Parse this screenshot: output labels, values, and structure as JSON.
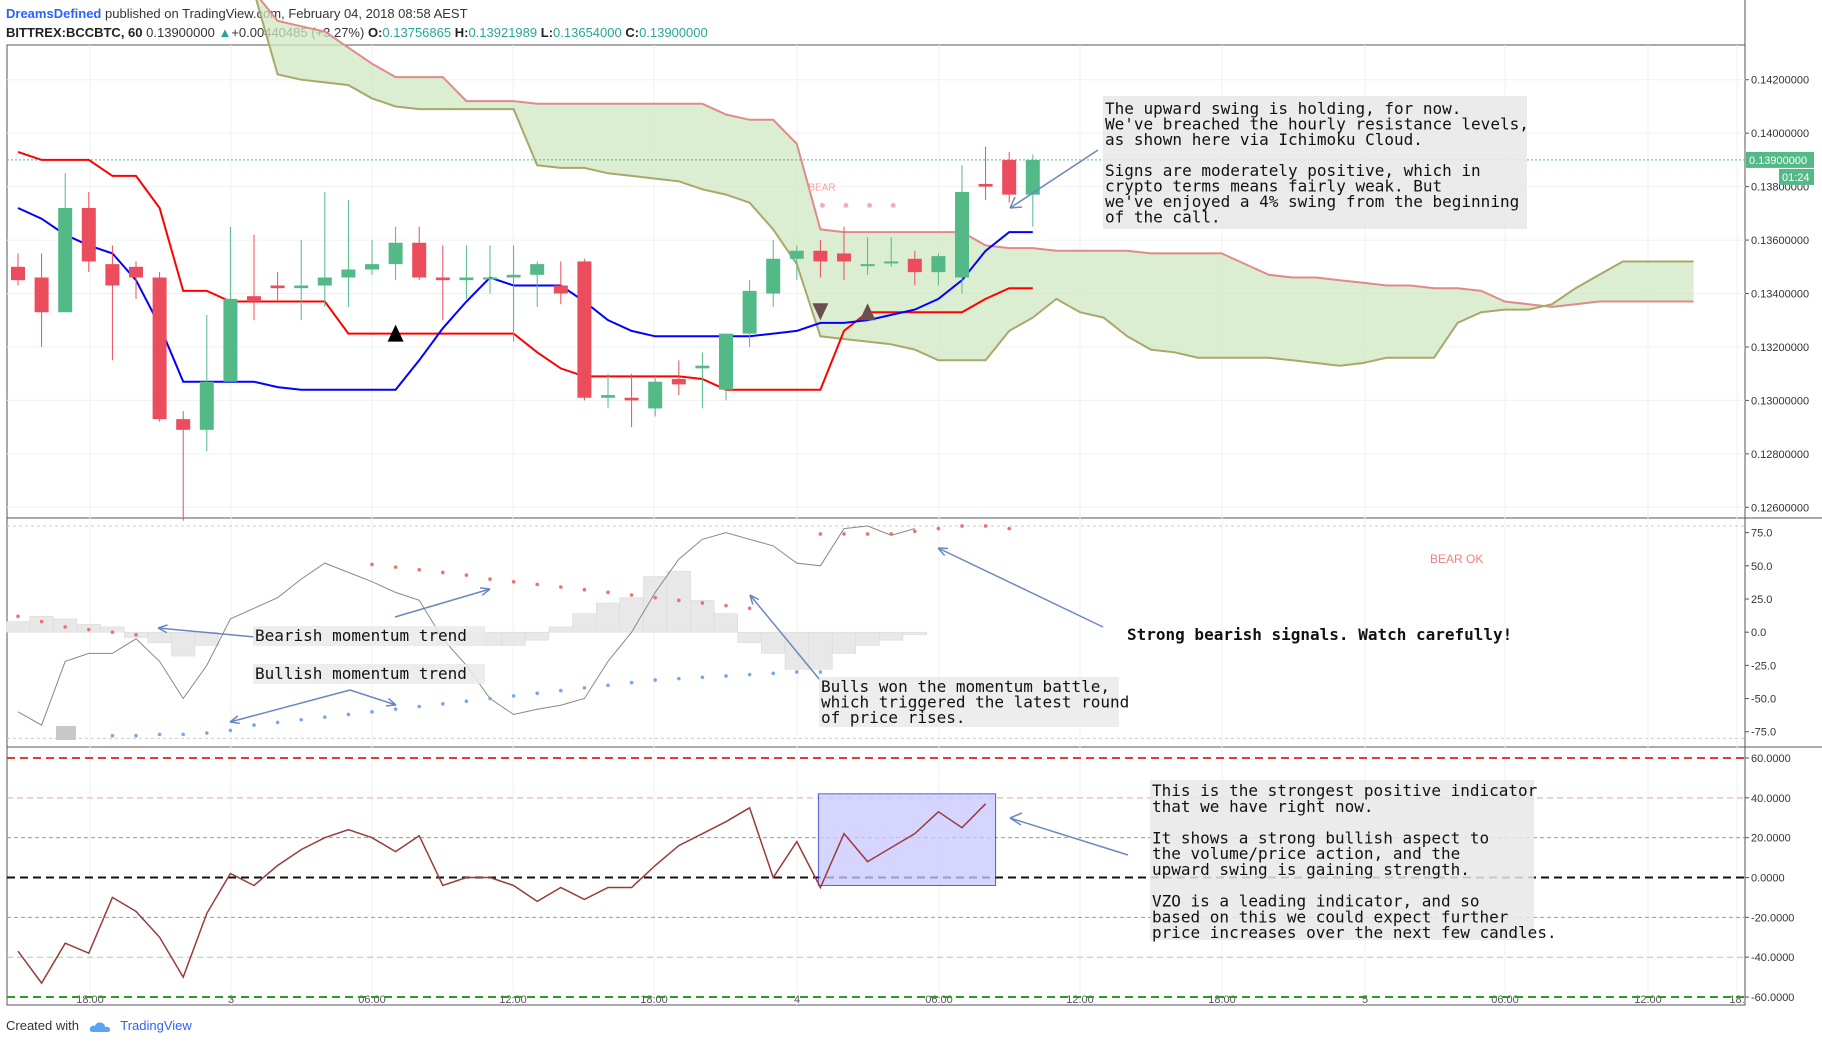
{
  "header": {
    "author": "DreamsDefined",
    "published": "published on TradingView.com, February 04, 2018 08:58 AEST",
    "symbol": "BITTREX:BCCBTC, 60",
    "price": "0.13900000",
    "change": "+0.00440485 (+3.27%)",
    "o_label": "O:",
    "o_value": "0.13756865",
    "h_label": "H:",
    "h_value": "0.13921989",
    "l_label": "L:",
    "l_value": "0.13654000",
    "c_label": "C:",
    "c_value": "0.13900000"
  },
  "footer": {
    "created_with": "Created with",
    "brand": "TradingView"
  },
  "colors": {
    "up": "#53b987",
    "down": "#eb4d5c",
    "tenkan": "#0000ff",
    "kijun": "#ff0000",
    "cloud_bear": "#f4b5b5",
    "cloud_bull": "#cfe8c2",
    "vzo": "#9b3a3a",
    "highlight": "#c8c8ff"
  },
  "chart_data": [
    {
      "type": "candlestick",
      "title": "",
      "price_badge": "0.13900000",
      "countdown": "01:24",
      "y_ticks": [
        "0.14200000",
        "0.14000000",
        "0.13800000",
        "0.13600000",
        "0.13400000",
        "0.13200000",
        "0.13000000",
        "0.12800000",
        "0.12600000"
      ],
      "y_range": [
        0.1256,
        0.1433
      ],
      "x_labels": [
        "18:00",
        "3",
        "06:00",
        "12:00",
        "18:00",
        "4",
        "06:00",
        "12:00",
        "18:00",
        "5",
        "06:00",
        "12:00",
        "18:"
      ],
      "candles": [
        {
          "o": 0.135,
          "h": 0.1355,
          "l": 0.1343,
          "c": 0.1345
        },
        {
          "o": 0.1346,
          "h": 0.1355,
          "l": 0.132,
          "c": 0.1333
        },
        {
          "o": 0.1333,
          "h": 0.1385,
          "l": 0.1333,
          "c": 0.1372
        },
        {
          "o": 0.1372,
          "h": 0.1378,
          "l": 0.1348,
          "c": 0.1352
        },
        {
          "o": 0.1351,
          "h": 0.1358,
          "l": 0.1315,
          "c": 0.1343
        },
        {
          "o": 0.135,
          "h": 0.1352,
          "l": 0.1338,
          "c": 0.1346
        },
        {
          "o": 0.1346,
          "h": 0.1348,
          "l": 0.1292,
          "c": 0.1293
        },
        {
          "o": 0.1293,
          "h": 0.1296,
          "l": 0.1255,
          "c": 0.1289
        },
        {
          "o": 0.1289,
          "h": 0.1332,
          "l": 0.1281,
          "c": 0.1307
        },
        {
          "o": 0.1307,
          "h": 0.1365,
          "l": 0.1307,
          "c": 0.1338
        },
        {
          "o": 0.1339,
          "h": 0.1362,
          "l": 0.133,
          "c": 0.1337
        },
        {
          "o": 0.1343,
          "h": 0.1348,
          "l": 0.1337,
          "c": 0.1342
        },
        {
          "o": 0.1342,
          "h": 0.136,
          "l": 0.133,
          "c": 0.1343
        },
        {
          "o": 0.1343,
          "h": 0.1378,
          "l": 0.1335,
          "c": 0.1346
        },
        {
          "o": 0.1346,
          "h": 0.1375,
          "l": 0.1335,
          "c": 0.1349
        },
        {
          "o": 0.1349,
          "h": 0.136,
          "l": 0.1347,
          "c": 0.1351
        },
        {
          "o": 0.1351,
          "h": 0.1365,
          "l": 0.1345,
          "c": 0.1359
        },
        {
          "o": 0.1359,
          "h": 0.1365,
          "l": 0.1345,
          "c": 0.1346
        },
        {
          "o": 0.1346,
          "h": 0.1358,
          "l": 0.133,
          "c": 0.1345
        },
        {
          "o": 0.1345,
          "h": 0.1358,
          "l": 0.1338,
          "c": 0.1346
        },
        {
          "o": 0.1346,
          "h": 0.1358,
          "l": 0.134,
          "c": 0.1346
        },
        {
          "o": 0.1346,
          "h": 0.1358,
          "l": 0.1322,
          "c": 0.1347
        },
        {
          "o": 0.1347,
          "h": 0.1352,
          "l": 0.1335,
          "c": 0.1351
        },
        {
          "o": 0.1343,
          "h": 0.1352,
          "l": 0.1336,
          "c": 0.134
        },
        {
          "o": 0.1352,
          "h": 0.1353,
          "l": 0.13,
          "c": 0.1301
        },
        {
          "o": 0.1301,
          "h": 0.131,
          "l": 0.1297,
          "c": 0.1302
        },
        {
          "o": 0.1301,
          "h": 0.131,
          "l": 0.129,
          "c": 0.13
        },
        {
          "o": 0.1297,
          "h": 0.1309,
          "l": 0.1294,
          "c": 0.1307
        },
        {
          "o": 0.1308,
          "h": 0.1315,
          "l": 0.1302,
          "c": 0.1306
        },
        {
          "o": 0.1312,
          "h": 0.1318,
          "l": 0.1297,
          "c": 0.1313
        },
        {
          "o": 0.1304,
          "h": 0.1324,
          "l": 0.13,
          "c": 0.1325
        },
        {
          "o": 0.1325,
          "h": 0.1345,
          "l": 0.132,
          "c": 0.1341
        },
        {
          "o": 0.134,
          "h": 0.136,
          "l": 0.1335,
          "c": 0.1353
        },
        {
          "o": 0.1353,
          "h": 0.1358,
          "l": 0.1345,
          "c": 0.1356
        },
        {
          "o": 0.1356,
          "h": 0.136,
          "l": 0.1346,
          "c": 0.1352
        },
        {
          "o": 0.1355,
          "h": 0.1365,
          "l": 0.1345,
          "c": 0.1352
        },
        {
          "o": 0.1351,
          "h": 0.1361,
          "l": 0.1347,
          "c": 0.1351
        },
        {
          "o": 0.1352,
          "h": 0.1361,
          "l": 0.135,
          "c": 0.1352
        },
        {
          "o": 0.1353,
          "h": 0.1356,
          "l": 0.1343,
          "c": 0.1348
        },
        {
          "o": 0.1348,
          "h": 0.1355,
          "l": 0.1343,
          "c": 0.1354
        },
        {
          "o": 0.1346,
          "h": 0.1388,
          "l": 0.134,
          "c": 0.1378
        },
        {
          "o": 0.1381,
          "h": 0.1395,
          "l": 0.1375,
          "c": 0.138
        },
        {
          "o": 0.139,
          "h": 0.1393,
          "l": 0.1374,
          "c": 0.1377
        },
        {
          "o": 0.1377,
          "h": 0.1392,
          "l": 0.1365,
          "c": 0.139
        }
      ],
      "tenkan": [
        0.1372,
        0.1368,
        0.1362,
        0.1358,
        0.1355,
        0.1345,
        0.1328,
        0.1307,
        0.1307,
        0.1307,
        0.1307,
        0.1305,
        0.1304,
        0.1304,
        0.1304,
        0.1304,
        0.1304,
        0.1315,
        0.1327,
        0.1337,
        0.1346,
        0.1343,
        0.1343,
        0.1343,
        0.1337,
        0.133,
        0.1326,
        0.1324,
        0.1324,
        0.1324,
        0.1324,
        0.1324,
        0.1325,
        0.1326,
        0.1329,
        0.1329,
        0.133,
        0.1332,
        0.1334,
        0.1338,
        0.1345,
        0.1356,
        0.1363,
        0.1363
      ],
      "kijun": [
        0.1393,
        0.139,
        0.139,
        0.139,
        0.1384,
        0.1384,
        0.1372,
        0.1341,
        0.1341,
        0.1337,
        0.1337,
        0.1337,
        0.1337,
        0.1337,
        0.1325,
        0.1325,
        0.1325,
        0.1325,
        0.1325,
        0.1325,
        0.1325,
        0.1325,
        0.1318,
        0.1312,
        0.1309,
        0.1309,
        0.1309,
        0.1309,
        0.1309,
        0.1308,
        0.1304,
        0.1304,
        0.1304,
        0.1304,
        0.1304,
        0.1326,
        0.1333,
        0.1333,
        0.1333,
        0.1333,
        0.1333,
        0.1338,
        0.1342,
        0.1342
      ],
      "cloud_offset": 0,
      "span_a": [
        0.1453,
        0.1453,
        0.1453,
        0.1453,
        0.1453,
        0.1453,
        0.1453,
        0.1453,
        0.1453,
        0.1453,
        0.1453,
        0.1442,
        0.144,
        0.1438,
        0.1432,
        0.1426,
        0.1421,
        0.1421,
        0.1421,
        0.1412,
        0.1412,
        0.1412,
        0.1411,
        0.1411,
        0.1411,
        0.1411,
        0.1411,
        0.1411,
        0.1411,
        0.1411,
        0.1407,
        0.1405,
        0.1405,
        0.1396,
        0.1364,
        0.1363,
        0.1363,
        0.1363,
        0.1363,
        0.1363,
        0.1363,
        0.1358,
        0.1357,
        0.1357,
        0.1356,
        0.1356,
        0.1356,
        0.1356,
        0.1355,
        0.1355,
        0.1355,
        0.1355,
        0.1351,
        0.1347,
        0.1346,
        0.1346,
        0.1345,
        0.1344,
        0.1343,
        0.1343,
        0.1342,
        0.1342,
        0.1341,
        0.1337,
        0.1336,
        0.1335,
        0.1336,
        0.1337,
        0.1337,
        0.1337,
        0.1337,
        0.1337
      ],
      "span_b": [
        0.1453,
        0.1453,
        0.1453,
        0.1453,
        0.1453,
        0.1453,
        0.1453,
        0.1453,
        0.1453,
        0.1453,
        0.1453,
        0.1422,
        0.142,
        0.1419,
        0.1418,
        0.1413,
        0.141,
        0.1409,
        0.1409,
        0.1409,
        0.1409,
        0.1409,
        0.1388,
        0.1387,
        0.1387,
        0.1385,
        0.1384,
        0.1383,
        0.1382,
        0.1379,
        0.1377,
        0.1374,
        0.1364,
        0.1351,
        0.1324,
        0.1323,
        0.1322,
        0.1321,
        0.1319,
        0.1315,
        0.1315,
        0.1315,
        0.1326,
        0.1331,
        0.1338,
        0.1333,
        0.1331,
        0.1324,
        0.1319,
        0.1318,
        0.1316,
        0.1316,
        0.1316,
        0.1316,
        0.1315,
        0.1314,
        0.1313,
        0.1314,
        0.1316,
        0.1316,
        0.1316,
        0.1329,
        0.1333,
        0.1334,
        0.1334,
        0.1336,
        0.1342,
        0.1347,
        0.1352,
        0.1352,
        0.1352,
        0.1352
      ],
      "markers": [
        {
          "i": 16,
          "kind": "up",
          "price": 0.1325
        },
        {
          "i": 34,
          "kind": "down",
          "price": 0.1333
        },
        {
          "i": 36,
          "kind": "up",
          "price": 0.1333
        }
      ],
      "bear_label": "BEAR",
      "price_line": 0.139
    },
    {
      "type": "line",
      "title": "",
      "y_ticks": [
        "75.0",
        "50.0",
        "25.0",
        "0.0",
        "-25.0",
        "-50.0",
        "-75.0"
      ],
      "y_range": [
        -85,
        83
      ],
      "bear_ok_label": "BEAR OK",
      "osc": [
        -60,
        -70,
        -22,
        -16,
        -16,
        -5,
        -22,
        -50,
        -25,
        10,
        18,
        26,
        40,
        52,
        45,
        38,
        30,
        24,
        -5,
        -25,
        -50,
        -62,
        -58,
        -55,
        -50,
        -22,
        0,
        30,
        55,
        70,
        75,
        70,
        65,
        52,
        50,
        78,
        80,
        73,
        78
      ],
      "hist": [
        8,
        12,
        10,
        6,
        4,
        -4,
        -8,
        -18,
        -10,
        0,
        0,
        0,
        0,
        0,
        0,
        0,
        0,
        0,
        -2,
        -10,
        -10,
        -10,
        -6,
        4,
        14,
        22,
        26,
        42,
        46,
        24,
        14,
        -8,
        -16,
        -28,
        -28,
        -16,
        -10,
        -6,
        -2
      ],
      "bear_dots": [
        {
          "i": 0,
          "v": 12
        },
        {
          "i": 1,
          "v": 8
        },
        {
          "i": 2,
          "v": 4
        },
        {
          "i": 3,
          "v": 2
        },
        {
          "i": 4,
          "v": 0
        },
        {
          "i": 5,
          "v": -2
        },
        {
          "i": 15,
          "v": 51
        },
        {
          "i": 16,
          "v": 49
        },
        {
          "i": 17,
          "v": 47
        },
        {
          "i": 18,
          "v": 45
        },
        {
          "i": 19,
          "v": 43
        },
        {
          "i": 20,
          "v": 40
        },
        {
          "i": 21,
          "v": 38
        },
        {
          "i": 22,
          "v": 36
        },
        {
          "i": 23,
          "v": 34
        },
        {
          "i": 24,
          "v": 32
        },
        {
          "i": 25,
          "v": 30
        },
        {
          "i": 26,
          "v": 28
        },
        {
          "i": 27,
          "v": 26
        },
        {
          "i": 28,
          "v": 24
        },
        {
          "i": 29,
          "v": 22
        },
        {
          "i": 30,
          "v": 20
        },
        {
          "i": 31,
          "v": 18
        },
        {
          "i": 34,
          "v": 74
        },
        {
          "i": 35,
          "v": 74
        },
        {
          "i": 36,
          "v": 74
        },
        {
          "i": 37,
          "v": 74
        },
        {
          "i": 38,
          "v": 76
        },
        {
          "i": 39,
          "v": 78
        },
        {
          "i": 40,
          "v": 80
        },
        {
          "i": 41,
          "v": 80
        },
        {
          "i": 42,
          "v": 78
        }
      ],
      "bull_dots": [
        {
          "i": 4,
          "v": -78
        },
        {
          "i": 5,
          "v": -78
        },
        {
          "i": 6,
          "v": -77
        },
        {
          "i": 7,
          "v": -77
        },
        {
          "i": 8,
          "v": -76
        },
        {
          "i": 9,
          "v": -74
        },
        {
          "i": 10,
          "v": -70
        },
        {
          "i": 11,
          "v": -68
        },
        {
          "i": 12,
          "v": -66
        },
        {
          "i": 13,
          "v": -64
        },
        {
          "i": 14,
          "v": -62
        },
        {
          "i": 15,
          "v": -60
        },
        {
          "i": 16,
          "v": -58
        },
        {
          "i": 17,
          "v": -56
        },
        {
          "i": 18,
          "v": -54
        },
        {
          "i": 19,
          "v": -52
        },
        {
          "i": 20,
          "v": -50
        },
        {
          "i": 21,
          "v": -48
        },
        {
          "i": 22,
          "v": -46
        },
        {
          "i": 23,
          "v": -44
        },
        {
          "i": 24,
          "v": -42
        },
        {
          "i": 25,
          "v": -40
        },
        {
          "i": 26,
          "v": -38
        },
        {
          "i": 27,
          "v": -36
        },
        {
          "i": 28,
          "v": -35
        },
        {
          "i": 29,
          "v": -34
        },
        {
          "i": 30,
          "v": -33
        },
        {
          "i": 31,
          "v": -32
        },
        {
          "i": 32,
          "v": -31
        },
        {
          "i": 33,
          "v": -30
        },
        {
          "i": 34,
          "v": -30
        }
      ]
    },
    {
      "type": "line",
      "title": "",
      "name": "VZO",
      "y_ticks": [
        "60.0000",
        "40.0000",
        "20.0000",
        "0.0000",
        "-20.0000",
        "-40.0000",
        "-60.0000"
      ],
      "y_range": [
        -64,
        64
      ],
      "levels": [
        60,
        40,
        20,
        0,
        -20,
        -40,
        -60
      ],
      "values": [
        -37,
        -53,
        -33,
        -38,
        -10,
        -17,
        -30,
        -50,
        -18,
        2,
        -4,
        6,
        14,
        20,
        24,
        20,
        13,
        21,
        -4,
        0,
        0,
        -4,
        -12,
        -5,
        -11,
        -5,
        -5,
        6,
        16,
        22,
        28,
        35,
        0,
        18,
        -5,
        22,
        8,
        15,
        22,
        33,
        25,
        37
      ]
    }
  ],
  "annotations": {
    "top": [
      "The upward swing is holding, for now.",
      "We've breached the hourly resistance levels,",
      "as shown here via Ichimoku Cloud.",
      "",
      "Signs are moderately positive, which in",
      "crypto terms means fairly weak. But",
      "we've enjoyed a 4% swing from the beginning",
      "of the call."
    ],
    "strong_bearish": "Strong bearish signals. Watch carefully!",
    "bearish_trend": "Bearish momentum trend",
    "bullish_trend": "Bullish momentum trend",
    "bulls_won": [
      "Bulls won the momentum battle,",
      "which triggered the latest round",
      "of price rises."
    ],
    "vzo": [
      "This is the strongest positive indicator",
      "that we have right now.",
      "",
      "It shows a strong bullish aspect to",
      "the volume/price action, and the",
      "upward swing is gaining strength.",
      "",
      "VZO is a leading indicator, and so",
      "based on this we could expect further",
      "price increases over the next few candles."
    ]
  }
}
